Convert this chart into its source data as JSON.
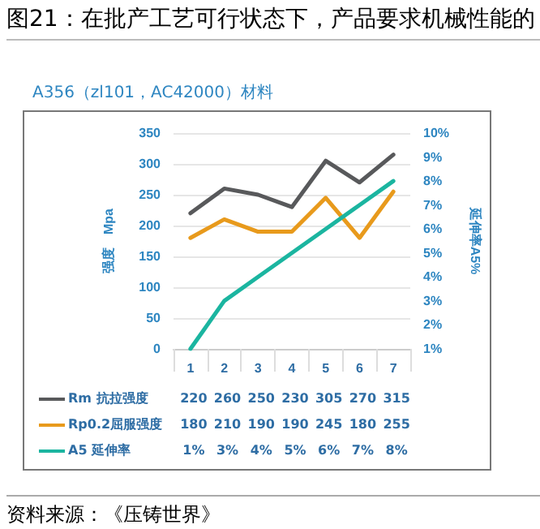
{
  "chart_data": {
    "type": "line",
    "title": "图21：在批产工艺可行状态下，产品要求机械性能的",
    "subtitle": "A356（zl101，AC42000）材料",
    "ylabel": "强度　Mpa",
    "y2label": "延伸率A5%",
    "categories": [
      "1",
      "2",
      "3",
      "4",
      "5",
      "6",
      "7"
    ],
    "series": [
      {
        "name": "Rm 抗拉强度",
        "color": "#58595b",
        "values": [
          220,
          260,
          250,
          230,
          305,
          270,
          315
        ],
        "value_labels": [
          "220",
          "260",
          "250",
          "230",
          "305",
          "270",
          "315"
        ]
      },
      {
        "name": "Rp0.2屈服强度",
        "color": "#e89a1c",
        "values": [
          180,
          210,
          190,
          190,
          245,
          180,
          255
        ],
        "value_labels": [
          "180",
          "210",
          "190",
          "190",
          "245",
          "180",
          "255"
        ]
      },
      {
        "name": "A5 延伸率",
        "color": "#1bb5a0",
        "axis": "y2",
        "values": [
          1,
          3,
          4,
          5,
          6,
          7,
          8
        ],
        "value_labels": [
          "1%",
          "3%",
          "4%",
          "5%",
          "6%",
          "7%",
          "8%"
        ]
      }
    ],
    "ylim": [
      0,
      350
    ],
    "yticks": [
      0,
      50,
      100,
      150,
      200,
      250,
      300,
      350
    ],
    "y2lim": [
      1,
      10
    ],
    "y2ticks": [
      {
        "value": 1,
        "label": "1%"
      },
      {
        "value": 2,
        "label": "2%"
      },
      {
        "value": 3,
        "label": "3%"
      },
      {
        "value": 4,
        "label": "4%"
      },
      {
        "value": 5,
        "label": "5%"
      },
      {
        "value": 6,
        "label": "6%"
      },
      {
        "value": 7,
        "label": "7%"
      },
      {
        "value": 8,
        "label": "8%"
      },
      {
        "value": 9,
        "label": "9%"
      },
      {
        "value": 10,
        "label": "10%"
      }
    ],
    "grid": "y",
    "legend": "bottom",
    "marker": "none",
    "line_style": "solid",
    "annotations": [
      "资料来源：《压铸世界》"
    ]
  }
}
